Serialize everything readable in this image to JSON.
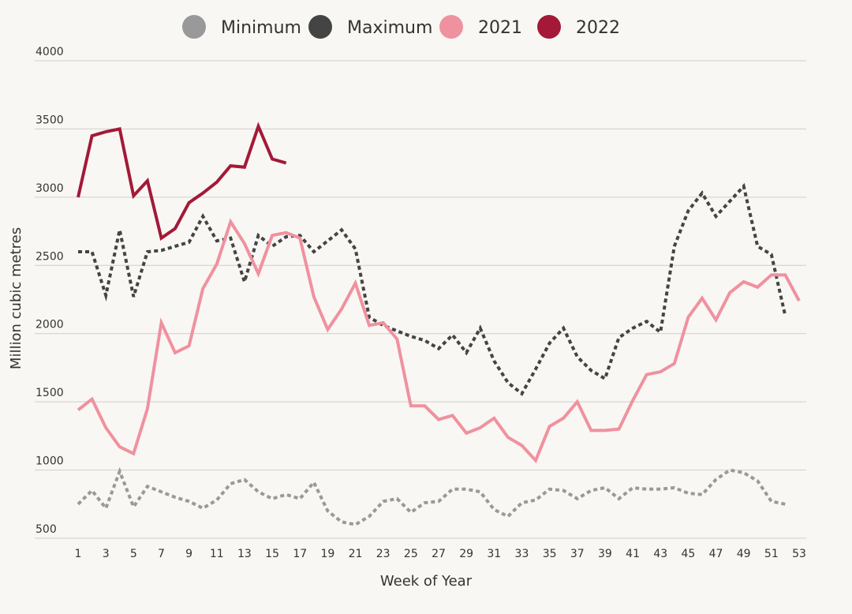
{
  "chart_data": {
    "type": "line",
    "title": "",
    "xlabel": "Week of Year",
    "ylabel": "Million cubic metres",
    "xlim": [
      1,
      53
    ],
    "ylim": [
      500,
      4000
    ],
    "x_ticks": [
      1,
      3,
      5,
      7,
      9,
      11,
      13,
      15,
      17,
      19,
      21,
      23,
      25,
      27,
      29,
      31,
      33,
      35,
      37,
      39,
      41,
      43,
      45,
      47,
      49,
      51,
      53
    ],
    "y_ticks": [
      500,
      1000,
      1500,
      2000,
      2500,
      3000,
      3500,
      4000
    ],
    "grid": "horizontal",
    "legend_position": "top-center",
    "series": [
      {
        "name": "Minimum",
        "color": "#999999",
        "dash": "dotted",
        "x": [
          1,
          2,
          3,
          4,
          5,
          6,
          7,
          8,
          9,
          10,
          11,
          12,
          13,
          14,
          15,
          16,
          17,
          18,
          19,
          20,
          21,
          22,
          23,
          24,
          25,
          26,
          27,
          28,
          29,
          30,
          31,
          32,
          33,
          34,
          35,
          36,
          37,
          38,
          39,
          40,
          41,
          42,
          43,
          44,
          45,
          46,
          47,
          48,
          49,
          50,
          51,
          52
        ],
        "values": [
          750,
          850,
          720,
          990,
          730,
          880,
          840,
          800,
          770,
          720,
          780,
          900,
          930,
          840,
          790,
          820,
          790,
          910,
          700,
          620,
          600,
          660,
          770,
          790,
          690,
          760,
          770,
          860,
          860,
          840,
          710,
          660,
          760,
          780,
          860,
          850,
          790,
          850,
          870,
          790,
          870,
          860,
          860,
          870,
          830,
          820,
          930,
          1000,
          980,
          920,
          770,
          750
        ]
      },
      {
        "name": "Maximum",
        "color": "#444444",
        "dash": "dotted",
        "x": [
          1,
          2,
          3,
          4,
          5,
          6,
          7,
          8,
          9,
          10,
          11,
          12,
          13,
          14,
          15,
          16,
          17,
          18,
          19,
          20,
          21,
          22,
          23,
          24,
          25,
          26,
          27,
          28,
          29,
          30,
          31,
          32,
          33,
          34,
          35,
          36,
          37,
          38,
          39,
          40,
          41,
          42,
          43,
          44,
          45,
          46,
          47,
          48,
          49,
          50,
          51,
          52
        ],
        "values": [
          2600,
          2600,
          2280,
          2760,
          2270,
          2600,
          2610,
          2640,
          2670,
          2860,
          2680,
          2700,
          2380,
          2720,
          2640,
          2710,
          2720,
          2600,
          2680,
          2760,
          2620,
          2120,
          2060,
          2020,
          1980,
          1950,
          1890,
          1990,
          1860,
          2040,
          1800,
          1640,
          1560,
          1740,
          1930,
          2040,
          1830,
          1730,
          1670,
          1970,
          2040,
          2090,
          2010,
          2640,
          2900,
          3030,
          2860,
          2970,
          3080,
          2640,
          2580,
          2130
        ]
      },
      {
        "name": "2021",
        "color": "#f0919f",
        "dash": "solid",
        "x": [
          1,
          2,
          3,
          4,
          5,
          6,
          7,
          8,
          9,
          10,
          11,
          12,
          13,
          14,
          15,
          16,
          17,
          18,
          19,
          20,
          21,
          22,
          23,
          24,
          25,
          26,
          27,
          28,
          29,
          30,
          31,
          32,
          33,
          34,
          35,
          36,
          37,
          38,
          39,
          40,
          41,
          42,
          43,
          44,
          45,
          46,
          47,
          48,
          49,
          50,
          51,
          52,
          53
        ],
        "values": [
          1440,
          1520,
          1310,
          1170,
          1120,
          1450,
          2080,
          1860,
          1910,
          2330,
          2510,
          2820,
          2660,
          2440,
          2720,
          2740,
          2700,
          2270,
          2030,
          2180,
          2370,
          2060,
          2080,
          1960,
          1470,
          1470,
          1370,
          1400,
          1270,
          1310,
          1380,
          1240,
          1180,
          1070,
          1320,
          1380,
          1500,
          1290,
          1290,
          1300,
          1510,
          1700,
          1720,
          1780,
          2120,
          2260,
          2100,
          2300,
          2380,
          2340,
          2430,
          2430,
          2240
        ]
      },
      {
        "name": "2022",
        "color": "#a31937",
        "dash": "solid",
        "x": [
          1,
          2,
          3,
          4,
          5,
          6,
          7,
          8,
          9,
          10,
          11,
          12,
          13,
          14,
          15,
          16
        ],
        "values": [
          3000,
          3450,
          3480,
          3500,
          3010,
          3120,
          2700,
          2770,
          2960,
          3030,
          3110,
          3230,
          3220,
          3520,
          3280,
          3250
        ]
      }
    ]
  }
}
